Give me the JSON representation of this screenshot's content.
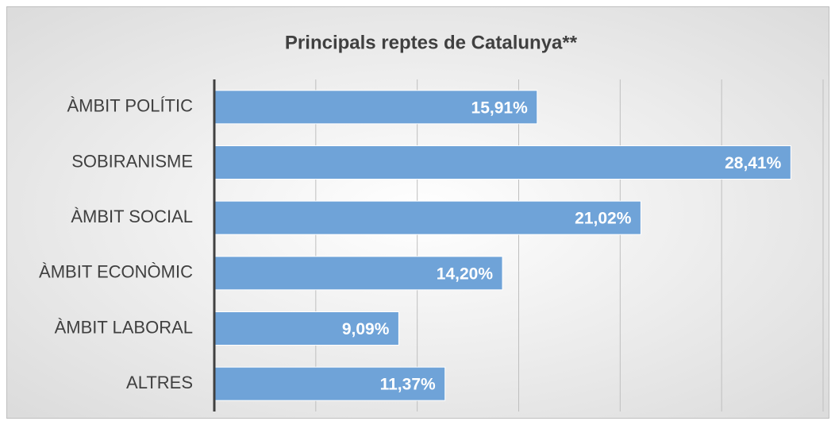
{
  "chart_data": {
    "type": "hbar",
    "title": "Principals reptes de Catalunya**",
    "categories": [
      "ÀMBIT POLÍTIC",
      "SOBIRANISME",
      "ÀMBIT SOCIAL",
      "ÀMBIT ECONÒMIC",
      "ÀMBIT LABORAL",
      "ALTRES"
    ],
    "values": [
      15.91,
      28.41,
      21.02,
      14.2,
      9.09,
      11.37
    ],
    "value_labels": [
      "15,91%",
      "28,41%",
      "21,02%",
      "14,20%",
      "9,09%",
      "11,37%"
    ],
    "color": "#6fa3d8",
    "xlim": [
      0,
      30
    ],
    "xticks": [
      0,
      5,
      10,
      15,
      20,
      25,
      30
    ],
    "grid": true
  }
}
